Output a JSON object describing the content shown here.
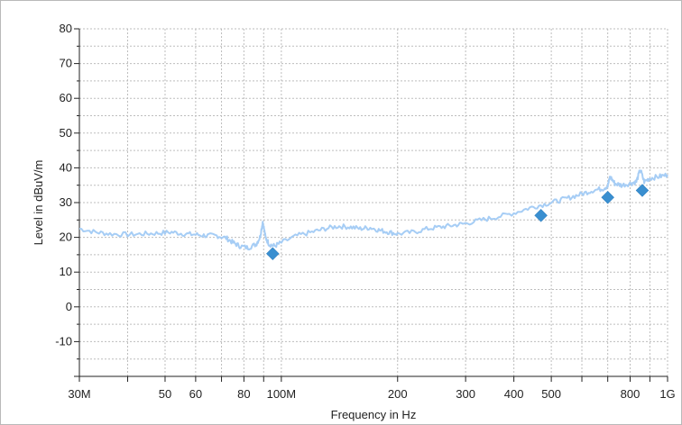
{
  "chart_data": {
    "type": "line",
    "xlabel": "Frequency in Hz",
    "ylabel": "Level in dBuV/m",
    "x_scale": "log",
    "xlim": [
      30000000,
      1000000000
    ],
    "ylim": [
      -20,
      80
    ],
    "grid": true,
    "x_ticks": [
      {
        "value": 30000000,
        "label": "30M"
      },
      {
        "value": 50000000,
        "label": "50"
      },
      {
        "value": 60000000,
        "label": "60"
      },
      {
        "value": 80000000,
        "label": "80"
      },
      {
        "value": 100000000,
        "label": "100M"
      },
      {
        "value": 200000000,
        "label": "200"
      },
      {
        "value": 300000000,
        "label": "300"
      },
      {
        "value": 400000000,
        "label": "400"
      },
      {
        "value": 500000000,
        "label": "500"
      },
      {
        "value": 800000000,
        "label": "800"
      },
      {
        "value": 1000000000,
        "label": "1G"
      }
    ],
    "x_minor_ticks": [
      40000000,
      70000000,
      90000000,
      600000000,
      700000000,
      900000000
    ],
    "y_ticks": [
      {
        "value": 80,
        "label": "80"
      },
      {
        "value": 70,
        "label": "70"
      },
      {
        "value": 60,
        "label": "60"
      },
      {
        "value": 50,
        "label": "50"
      },
      {
        "value": 40,
        "label": "40"
      },
      {
        "value": 30,
        "label": "30"
      },
      {
        "value": 20,
        "label": "20"
      },
      {
        "value": 10,
        "label": "10"
      },
      {
        "value": 0,
        "label": "0"
      },
      {
        "value": -10,
        "label": "-10"
      }
    ],
    "series": [
      {
        "color": "#a6cdf5",
        "x": [
          30000000,
          33000000,
          36000000,
          40000000,
          44000000,
          48000000,
          52000000,
          56000000,
          60000000,
          64000000,
          68000000,
          72000000,
          75000000,
          78000000,
          82000000,
          86000000,
          88000000,
          89500000,
          91000000,
          93000000,
          96000000,
          100000000,
          110000000,
          120000000,
          130000000,
          140000000,
          150000000,
          160000000,
          170000000,
          180000000,
          190000000,
          200000000,
          220000000,
          240000000,
          260000000,
          280000000,
          300000000,
          330000000,
          360000000,
          400000000,
          440000000,
          480000000,
          520000000,
          560000000,
          600000000,
          640000000,
          680000000,
          700000000,
          710000000,
          730000000,
          760000000,
          800000000,
          830000000,
          850000000,
          870000000,
          900000000,
          950000000,
          1000000000
        ],
        "y": [
          22.5,
          21.5,
          21,
          20.8,
          21,
          21.2,
          21.5,
          21,
          20.8,
          20.5,
          20.5,
          19.8,
          18.5,
          17.5,
          17,
          18,
          20,
          24.5,
          20,
          18,
          17.5,
          18.5,
          20.5,
          21.5,
          22.5,
          23.2,
          23,
          22.5,
          22.8,
          22,
          21.5,
          21,
          21.5,
          22.5,
          23,
          23.5,
          24,
          25,
          25.8,
          27,
          28.5,
          29.5,
          30.5,
          31.5,
          32.5,
          33.5,
          34,
          34.8,
          37.5,
          35.5,
          35,
          35.5,
          36,
          39.5,
          36,
          37,
          37.5,
          38
        ]
      }
    ],
    "markers": {
      "color": "#3a8fd0",
      "x": [
        95000000,
        470000000,
        700000000,
        860000000
      ],
      "y": [
        15.3,
        26.3,
        31.5,
        33.5
      ]
    }
  }
}
